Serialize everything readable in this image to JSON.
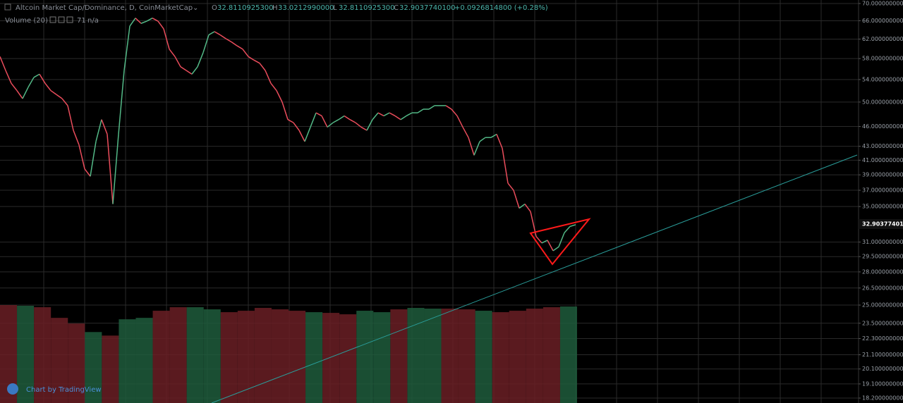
{
  "chart_data": {
    "type": "line",
    "title": "Altcoin Market Cap/Dominance, D, CoinMarketCap",
    "ohlc": [
      {
        "label": "O",
        "value": "32.8110925300"
      },
      {
        "label": "H",
        "value": "33.0212990000"
      },
      {
        "label": "L",
        "value": "32.8110925300"
      },
      {
        "label": "C",
        "value": "32.9037740100"
      }
    ],
    "change": "+0.0926814800 (+0.28%)",
    "volume_label": "Volume (20)",
    "volume_value": "71",
    "volume_ma": "n/a",
    "last_price_label": "32.9037740100",
    "watermark": "Chart by TradingView",
    "log_scale": true,
    "grid": true,
    "up_color": "#53b987",
    "down_color": "#eb4d5c",
    "volume_up_color": "#1f5c3c",
    "volume_down_color": "#6a1f24",
    "series": [
      {
        "name": "Altcoin Market Cap/Dominance",
        "values": [
          58.4,
          55.7,
          53.3,
          52.0,
          50.6,
          52.6,
          54.4,
          55.0,
          53.3,
          52.0,
          51.3,
          50.6,
          49.4,
          45.4,
          43.2,
          39.8,
          38.8,
          43.7,
          47.1,
          44.8,
          35.3,
          44.8,
          55.7,
          64.8,
          66.6,
          65.4,
          65.9,
          66.6,
          65.9,
          64.2,
          59.9,
          58.4,
          56.4,
          55.7,
          55.0,
          56.4,
          59.2,
          62.9,
          63.6,
          62.9,
          62.1,
          61.4,
          60.6,
          59.9,
          58.4,
          57.7,
          57.1,
          55.7,
          53.3,
          52.0,
          50.0,
          47.1,
          46.6,
          45.4,
          43.7,
          45.9,
          48.2,
          47.7,
          45.9,
          46.6,
          47.1,
          47.7,
          47.1,
          46.6,
          45.9,
          45.4,
          47.1,
          48.2,
          47.7,
          48.2,
          47.7,
          47.1,
          47.7,
          48.2,
          48.2,
          48.8,
          48.8,
          49.4,
          49.4,
          49.4,
          48.8,
          47.7,
          45.9,
          44.3,
          41.7,
          43.7,
          44.3,
          44.3,
          44.8,
          42.7,
          37.9,
          37.0,
          34.8,
          35.3,
          34.4,
          31.6,
          30.9,
          31.2,
          30.1,
          30.5,
          32.0,
          32.7,
          32.9
        ]
      },
      {
        "name": "Volume",
        "values": [
          138,
          137,
          135,
          120,
          112,
          100,
          95,
          118,
          120,
          130,
          135,
          135,
          132,
          128,
          130,
          134,
          132,
          130,
          128,
          127,
          125,
          130,
          128,
          132,
          134,
          133,
          133,
          132,
          130,
          128,
          130,
          133,
          135,
          136
        ]
      }
    ],
    "ylim": [
      18.2,
      70
    ],
    "yticks": [
      {
        "value": 70,
        "label": "70.0000000000"
      },
      {
        "value": 66,
        "label": "66.0000000000"
      },
      {
        "value": 62,
        "label": "62.0000000000"
      },
      {
        "value": 58,
        "label": "58.0000000000"
      },
      {
        "value": 54,
        "label": "54.0000000000"
      },
      {
        "value": 50,
        "label": "50.0000000000"
      },
      {
        "value": 46,
        "label": "46.0000000000"
      },
      {
        "value": 43,
        "label": "43.0000000000"
      },
      {
        "value": 41,
        "label": "41.0000000000"
      },
      {
        "value": 39,
        "label": "39.0000000000"
      },
      {
        "value": 37,
        "label": "37.0000000000"
      },
      {
        "value": 35,
        "label": "35.0000000000"
      },
      {
        "value": 31,
        "label": "31.0000000000"
      },
      {
        "value": 29.5,
        "label": "29.5000000000"
      },
      {
        "value": 28,
        "label": "28.0000000000"
      },
      {
        "value": 26.5,
        "label": "26.5000000000"
      },
      {
        "value": 25,
        "label": "25.0000000000"
      },
      {
        "value": 23.5,
        "label": "23.5000000000"
      },
      {
        "value": 22.3,
        "label": "22.3000000000"
      },
      {
        "value": 21.1,
        "label": "21.1000000000"
      },
      {
        "value": 20.1,
        "label": "20.1000000000"
      },
      {
        "value": 19.1,
        "label": "19.1000000000"
      },
      {
        "value": 18.2,
        "label": "18.2000000000"
      }
    ]
  }
}
